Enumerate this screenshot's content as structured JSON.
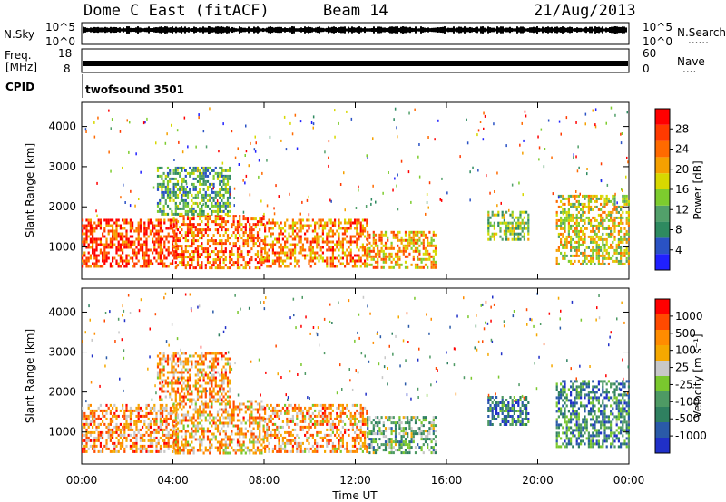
{
  "header": {
    "station": "Dome C East (fitACF)",
    "beam": "Beam 14",
    "date": "21/Aug/2013"
  },
  "summary": {
    "nsky_label": "N.Sky",
    "nsky_ticks": [
      "10^5",
      "10^0"
    ],
    "nsearch_label": "N.Search",
    "nsearch_ticks": [
      "10^5",
      "10^0"
    ],
    "freq_label": "Freq.",
    "freq_unit": "[MHz]",
    "freq_ticks": [
      "18",
      "8"
    ],
    "nave_label": "Nave",
    "nave_ticks": [
      "60",
      "0"
    ],
    "cpid_label": "CPID",
    "cpid_value": "twofsound 3501",
    "dots": "......",
    "dots_short": "...."
  },
  "colors": {
    "power": [
      "#2020ff",
      "#2a52c4",
      "#2e8a60",
      "#52a06a",
      "#7dcc2e",
      "#d7d800",
      "#f5a000",
      "#ff6a00",
      "#ff3a00",
      "#ff0000"
    ],
    "velocity": [
      "#2030c8",
      "#2a5aa8",
      "#2f8060",
      "#4e9a64",
      "#7ac82e",
      "#c8c8c8",
      "#f5a800",
      "#ff8c00",
      "#ff4a00",
      "#ff0000"
    ]
  },
  "chart_data": [
    {
      "type": "heatmap",
      "name": "power",
      "xlabel": "Time UT",
      "ylabel": "Slant Range [km]",
      "xlim": [
        0,
        24
      ],
      "ylim": [
        200,
        4600
      ],
      "xticks": [
        0,
        4,
        8,
        12,
        16,
        20,
        24
      ],
      "xtick_labels": [
        "00:00",
        "04:00",
        "08:00",
        "12:00",
        "16:00",
        "20:00",
        "00:00"
      ],
      "yticks": [
        1000,
        2000,
        3000,
        4000
      ],
      "ytick_labels": [
        "1000",
        "2000",
        "3000",
        "4000"
      ],
      "colorbar": {
        "label": "Power [dB]",
        "tick_labels": [
          "4",
          "8",
          "12",
          "16",
          "20",
          "24",
          "28"
        ],
        "range": [
          0,
          32
        ]
      },
      "echo_regions": [
        {
          "t": [
            0.0,
            4.2
          ],
          "r": [
            500,
            1700
          ],
          "level": 0.85
        },
        {
          "t": [
            4.0,
            8.0
          ],
          "r": [
            500,
            1800
          ],
          "level": 0.78
        },
        {
          "t": [
            8.0,
            12.5
          ],
          "r": [
            500,
            1700
          ],
          "level": 0.72
        },
        {
          "t": [
            12.5,
            15.5
          ],
          "r": [
            500,
            1400
          ],
          "level": 0.65
        },
        {
          "t": [
            17.8,
            19.6
          ],
          "r": [
            1200,
            1900
          ],
          "level": 0.45
        },
        {
          "t": [
            20.8,
            24.0
          ],
          "r": [
            600,
            2300
          ],
          "level": 0.55
        },
        {
          "t": [
            3.3,
            6.5
          ],
          "r": [
            1800,
            3000
          ],
          "level": 0.35
        }
      ]
    },
    {
      "type": "heatmap",
      "name": "velocity",
      "xlabel": "Time UT",
      "ylabel": "Slant Range [km]",
      "xlim": [
        0,
        24
      ],
      "ylim": [
        200,
        4600
      ],
      "xticks": [
        0,
        4,
        8,
        12,
        16,
        20,
        24
      ],
      "xtick_labels": [
        "00:00",
        "04:00",
        "08:00",
        "12:00",
        "16:00",
        "20:00",
        "00:00"
      ],
      "yticks": [
        1000,
        2000,
        3000,
        4000
      ],
      "ytick_labels": [
        "1000",
        "2000",
        "3000",
        "4000"
      ],
      "colorbar": {
        "label": "Velocity [m s⁻¹]",
        "tick_labels": [
          "1000",
          "500",
          "100",
          "25",
          "-25",
          "-100",
          "-500",
          "-1000"
        ]
      },
      "echo_regions": [
        {
          "t": [
            0.0,
            4.2
          ],
          "r": [
            500,
            1700
          ],
          "level": 0.72
        },
        {
          "t": [
            4.0,
            8.0
          ],
          "r": [
            500,
            1800
          ],
          "level": 0.68
        },
        {
          "t": [
            8.0,
            12.5
          ],
          "r": [
            500,
            1700
          ],
          "level": 0.7
        },
        {
          "t": [
            12.5,
            15.5
          ],
          "r": [
            500,
            1400
          ],
          "level": 0.4
        },
        {
          "t": [
            17.8,
            19.6
          ],
          "r": [
            1200,
            1900
          ],
          "level": 0.25
        },
        {
          "t": [
            20.8,
            24.0
          ],
          "r": [
            600,
            2300
          ],
          "level": 0.28
        },
        {
          "t": [
            3.3,
            6.5
          ],
          "r": [
            1800,
            3000
          ],
          "level": 0.7
        }
      ]
    }
  ]
}
